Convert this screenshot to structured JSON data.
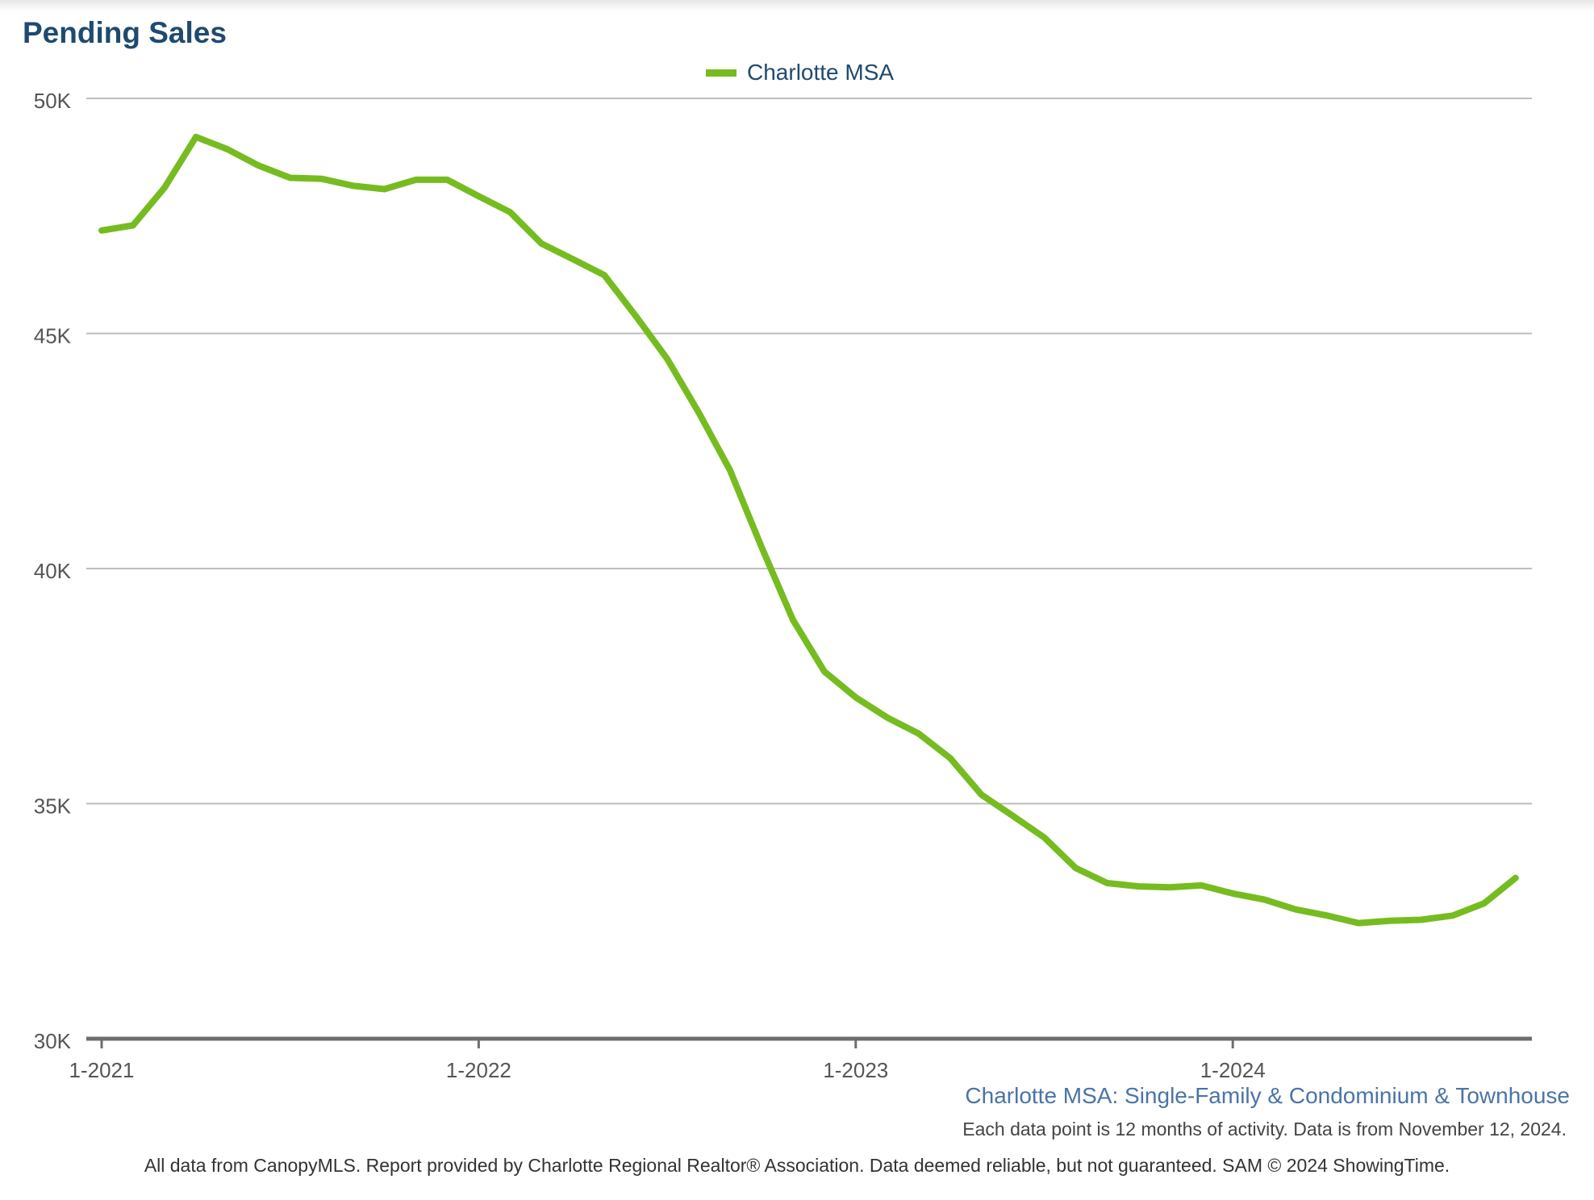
{
  "title": "Pending Sales",
  "legend": {
    "label": "Charlotte MSA",
    "color": "#76bc21"
  },
  "footer": {
    "subtitle": "Charlotte MSA: Single-Family & Condominium & Townhouse",
    "note": "Each data point is 12 months of activity. Data is from November 12, 2024.",
    "credit": "All data from CanopyMLS. Report provided by Charlotte Regional Realtor® Association. Data deemed reliable, but not guaranteed. SAM © 2024 ShowingTime."
  },
  "chart_data": {
    "type": "line",
    "title": "Pending Sales",
    "xlabel": "",
    "ylabel": "",
    "ylim": [
      30000,
      50000
    ],
    "y_ticks": [
      {
        "value": 30000,
        "label": "30K"
      },
      {
        "value": 35000,
        "label": "35K"
      },
      {
        "value": 40000,
        "label": "40K"
      },
      {
        "value": 45000,
        "label": "45K"
      },
      {
        "value": 50000,
        "label": "50K"
      }
    ],
    "x_ticks": [
      {
        "index": 0,
        "label": "1-2021"
      },
      {
        "index": 12,
        "label": "1-2022"
      },
      {
        "index": 24,
        "label": "1-2023"
      },
      {
        "index": 36,
        "label": "1-2024"
      }
    ],
    "x_start": "1-2021",
    "x_end": "10-2024",
    "legend_position": "top-center",
    "grid": true,
    "series": [
      {
        "name": "Charlotte MSA",
        "color": "#76bc21",
        "values": [
          47190,
          47300,
          48100,
          49180,
          48920,
          48570,
          48310,
          48290,
          48140,
          48070,
          48270,
          48270,
          47920,
          47580,
          46910,
          46580,
          46240,
          45370,
          44460,
          43320,
          42090,
          40460,
          38910,
          37810,
          37260,
          36830,
          36490,
          35970,
          35190,
          34740,
          34280,
          33630,
          33310,
          33240,
          33220,
          33260,
          33090,
          32960,
          32750,
          32620,
          32460,
          32510,
          32530,
          32620,
          32880,
          33420
        ]
      }
    ]
  }
}
